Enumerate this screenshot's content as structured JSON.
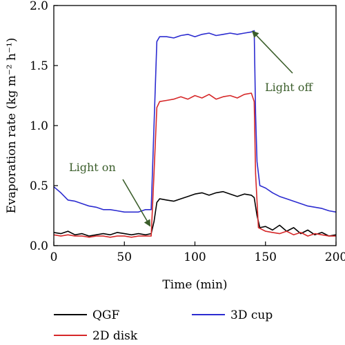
{
  "chart_data": {
    "type": "line",
    "xlabel": "Time (min)",
    "ylabel": "Evaporation rate (kg m⁻² h⁻¹)",
    "xlim": [
      0,
      200
    ],
    "ylim": [
      0,
      2.0
    ],
    "x_ticks": [
      0,
      50,
      100,
      150,
      200
    ],
    "x_tick_labels": [
      "0",
      "50",
      "100",
      "150",
      "200"
    ],
    "y_ticks": [
      0,
      0.5,
      1.0,
      1.5,
      2.0
    ],
    "y_tick_labels": [
      "0.0",
      "0.5",
      "1.0",
      "1.5",
      "2.0"
    ],
    "grid": false,
    "legend_position": "below",
    "series": [
      {
        "name": "QGF",
        "color": "#000000",
        "x": [
          0,
          5,
          10,
          15,
          20,
          25,
          30,
          35,
          40,
          45,
          50,
          55,
          60,
          65,
          69,
          71,
          73,
          75,
          80,
          85,
          90,
          95,
          100,
          105,
          110,
          115,
          120,
          125,
          130,
          135,
          140,
          142,
          144,
          146,
          150,
          155,
          160,
          165,
          170,
          175,
          180,
          185,
          190,
          195,
          200
        ],
        "y": [
          0.11,
          0.1,
          0.12,
          0.09,
          0.1,
          0.08,
          0.09,
          0.1,
          0.09,
          0.11,
          0.1,
          0.09,
          0.1,
          0.09,
          0.1,
          0.2,
          0.36,
          0.39,
          0.38,
          0.37,
          0.39,
          0.41,
          0.43,
          0.44,
          0.42,
          0.44,
          0.45,
          0.43,
          0.41,
          0.43,
          0.42,
          0.4,
          0.25,
          0.15,
          0.16,
          0.13,
          0.17,
          0.12,
          0.15,
          0.1,
          0.13,
          0.09,
          0.11,
          0.08,
          0.09
        ]
      },
      {
        "name": "2D disk",
        "color": "#d62728",
        "x": [
          0,
          5,
          10,
          15,
          20,
          25,
          30,
          35,
          40,
          45,
          50,
          55,
          60,
          65,
          69,
          71,
          73,
          75,
          80,
          85,
          90,
          95,
          100,
          105,
          110,
          115,
          120,
          125,
          130,
          135,
          140,
          142,
          143,
          145,
          150,
          155,
          160,
          165,
          170,
          175,
          180,
          185,
          190,
          195,
          200
        ],
        "y": [
          0.09,
          0.08,
          0.09,
          0.08,
          0.08,
          0.07,
          0.08,
          0.08,
          0.07,
          0.08,
          0.08,
          0.07,
          0.08,
          0.08,
          0.08,
          0.6,
          1.15,
          1.2,
          1.21,
          1.22,
          1.24,
          1.22,
          1.25,
          1.23,
          1.26,
          1.22,
          1.24,
          1.25,
          1.23,
          1.26,
          1.27,
          1.2,
          0.6,
          0.15,
          0.12,
          0.11,
          0.1,
          0.12,
          0.09,
          0.11,
          0.08,
          0.1,
          0.09,
          0.08,
          0.08
        ]
      },
      {
        "name": "3D cup",
        "color": "#2b2bd0",
        "x": [
          0,
          5,
          10,
          15,
          20,
          25,
          30,
          35,
          40,
          45,
          50,
          55,
          60,
          65,
          69,
          71,
          73,
          75,
          80,
          85,
          90,
          95,
          100,
          105,
          110,
          115,
          120,
          125,
          130,
          135,
          140,
          142,
          143,
          144,
          146,
          150,
          155,
          160,
          165,
          170,
          175,
          180,
          185,
          190,
          195,
          200
        ],
        "y": [
          0.49,
          0.44,
          0.38,
          0.37,
          0.35,
          0.33,
          0.32,
          0.3,
          0.3,
          0.29,
          0.28,
          0.28,
          0.28,
          0.3,
          0.3,
          1.0,
          1.7,
          1.74,
          1.74,
          1.73,
          1.75,
          1.76,
          1.74,
          1.76,
          1.77,
          1.75,
          1.76,
          1.77,
          1.76,
          1.77,
          1.78,
          1.79,
          1.1,
          0.7,
          0.5,
          0.48,
          0.44,
          0.41,
          0.39,
          0.37,
          0.35,
          0.33,
          0.32,
          0.31,
          0.29,
          0.28
        ]
      }
    ],
    "annotations": [
      {
        "text": "Light on",
        "color": "#3b5e2b",
        "arrow_to": {
          "x": 69,
          "y": 0.15
        }
      },
      {
        "text": "Light off",
        "color": "#3b5e2b",
        "arrow_to": {
          "x": 142,
          "y": 1.8
        }
      }
    ]
  }
}
